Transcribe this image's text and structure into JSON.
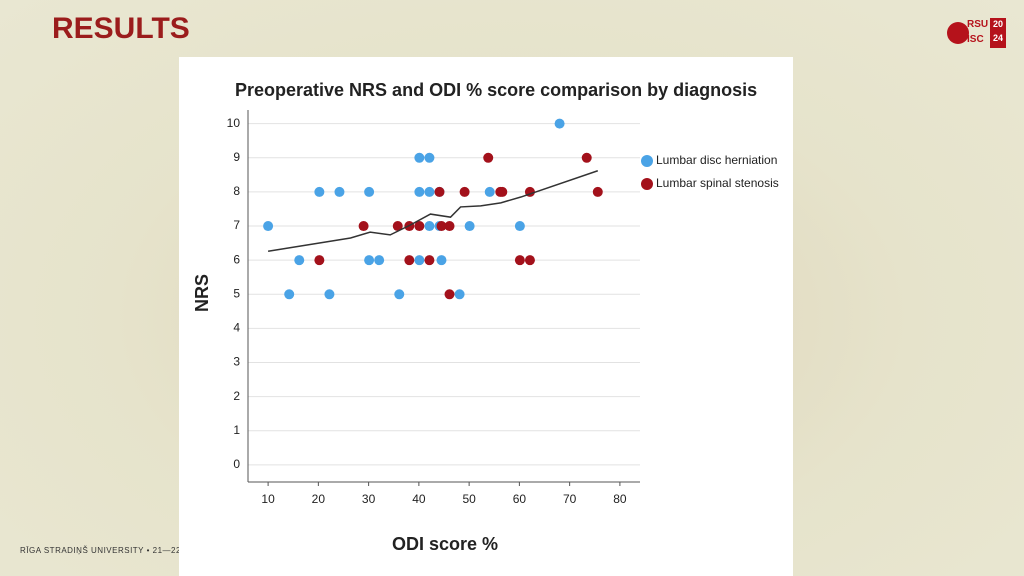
{
  "header": {
    "title": "RESULTS",
    "logo": [
      "RSU",
      "ISC",
      "20",
      "24"
    ]
  },
  "footer": {
    "text": "RĪGA STRADIŅŠ UNIVERSITY  •  21—22"
  },
  "chart_data": {
    "type": "scatter",
    "title": "Preoperative NRS and ODI % score comparison by diagnosis",
    "x_label": "ODI score %",
    "y_label": "NRS",
    "xlim": [
      6,
      84
    ],
    "ylim": [
      -0.5,
      10.4
    ],
    "xticks": [
      10,
      20,
      30,
      40,
      50,
      60,
      70,
      80
    ],
    "yticks": [
      0,
      1,
      2,
      3,
      4,
      5,
      6,
      7,
      8,
      9,
      10
    ],
    "grid": true,
    "legend": "right",
    "series": [
      {
        "name": "Lumbar disc herniation",
        "color": "#4aa3e6",
        "x": [
          10,
          14.2,
          16.2,
          20.2,
          22.2,
          24.2,
          30.1,
          30.1,
          32.1,
          36.1,
          40.1,
          40.1,
          40.1,
          42.1,
          42.1,
          42.1,
          44.1,
          44.1,
          44.5,
          48.1,
          50.1,
          54.1,
          60.1,
          68
        ],
        "values": [
          7,
          5,
          6,
          8,
          5,
          8,
          8,
          6,
          6,
          5,
          9,
          8,
          6,
          9,
          8,
          7,
          8,
          7,
          6,
          5,
          7,
          8,
          7,
          10
        ]
      },
      {
        "name": "Lumbar spinal stenosis",
        "color": "#a3111b",
        "x": [
          20.2,
          29,
          35.8,
          38.1,
          38.1,
          40.1,
          42.1,
          44.1,
          44.5,
          46.1,
          46.1,
          49.1,
          53.8,
          56.2,
          56.6,
          60.1,
          62.1,
          62.1,
          73.4,
          75.6
        ],
        "values": [
          6,
          7,
          7,
          6,
          7,
          7,
          6,
          8,
          7,
          7,
          5,
          8,
          9,
          8,
          8,
          6,
          8,
          6,
          9,
          8
        ]
      }
    ],
    "fit_line": {
      "color": "#333333",
      "x": [
        10,
        26.4,
        30.3,
        34.3,
        38.3,
        42.3,
        46.3,
        48.3,
        52.3,
        56.3,
        60.3,
        75.6
      ],
      "values": [
        6.26,
        6.65,
        6.82,
        6.74,
        7.03,
        7.35,
        7.26,
        7.56,
        7.59,
        7.68,
        7.85,
        8.62
      ]
    }
  }
}
